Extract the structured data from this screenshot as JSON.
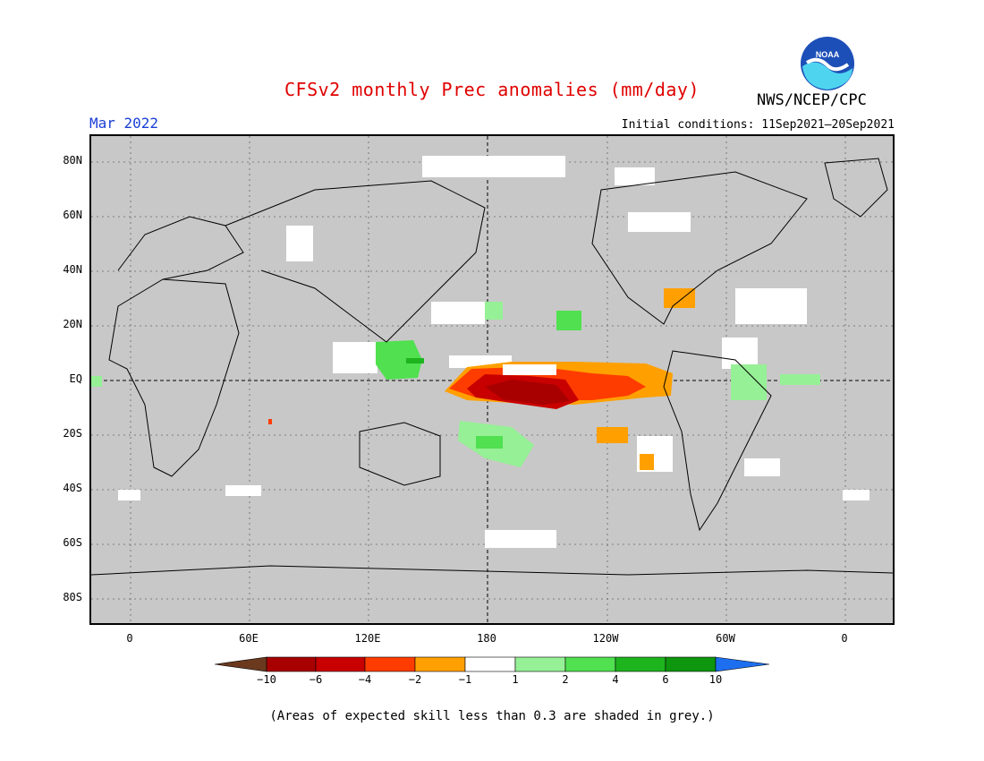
{
  "title": "CFSv2 monthly Prec anomalies (mm/day)",
  "agency": "NWS/NCEP/CPC",
  "logo_text": "NOAA",
  "month": "Mar 2022",
  "initial_conditions": "Initial conditions: 11Sep2021—20Sep2021",
  "footnote": "(Areas of expected skill less than 0.3 are shaded in grey.)",
  "axes": {
    "y_ticks": [
      "80N",
      "60N",
      "40N",
      "20N",
      "EQ",
      "20S",
      "40S",
      "60S",
      "80S"
    ],
    "x_ticks": [
      "0",
      "60E",
      "120E",
      "180",
      "120W",
      "60W",
      "0"
    ]
  },
  "colorbar": {
    "labels": [
      "−10",
      "−6",
      "−4",
      "−2",
      "−1",
      "1",
      "2",
      "4",
      "6",
      "10"
    ],
    "colors": [
      "#6b3a1e",
      "#a80000",
      "#c80000",
      "#ff3c00",
      "#ffa000",
      "#ffffff",
      "#96f096",
      "#50e050",
      "#1eb41e",
      "#0f960f",
      "#1e6ef0"
    ]
  },
  "colors": {
    "grey_mask": "#c8c8c8",
    "strong_dry": "#a80000",
    "dry": "#ff3c00",
    "moderate_dry": "#ffa000",
    "wet_light": "#96f096",
    "wet": "#50e050",
    "title_red": "#e00000",
    "month_blue": "#1a3fd6"
  }
}
